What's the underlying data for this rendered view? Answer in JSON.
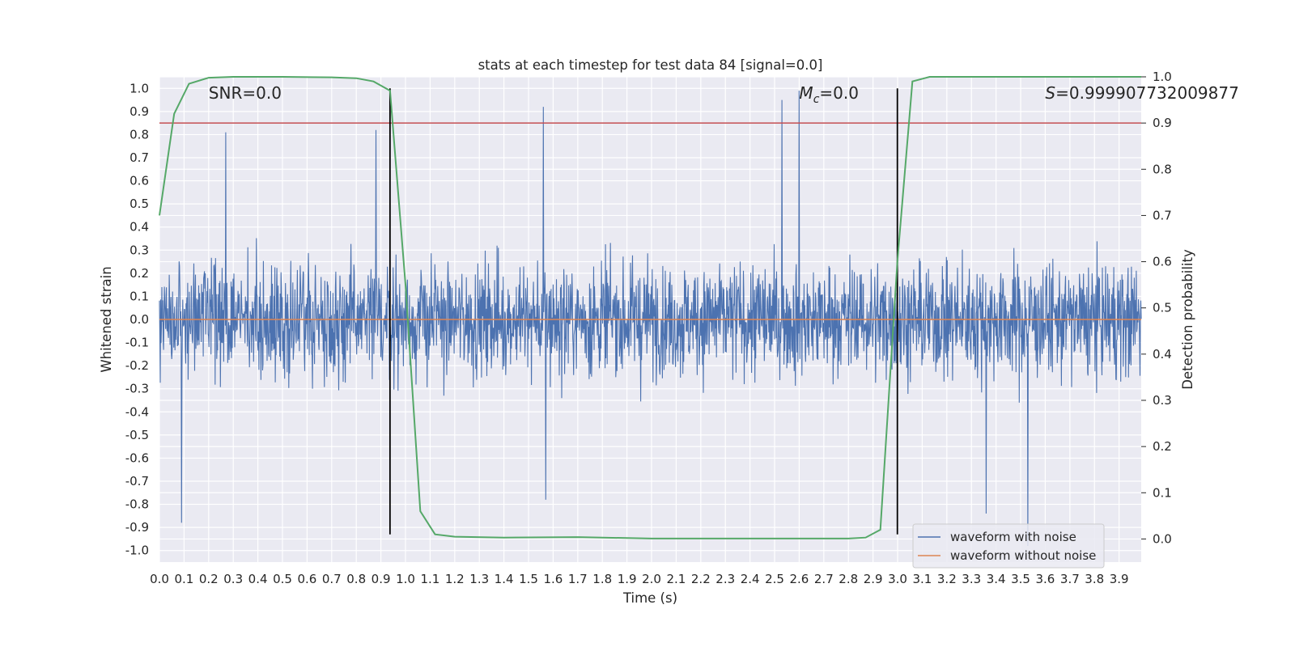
{
  "chart_data": {
    "type": "line",
    "title": "stats at each timestep for test data 84 [signal=0.0]",
    "xlabel": "Time (s)",
    "ylabel": "Whitened strain",
    "y2label": "Detection probability",
    "xlim": [
      0.0,
      3.99
    ],
    "ylim": [
      -1.05,
      1.05
    ],
    "y2lim": [
      -0.05,
      1.0
    ],
    "xticks": [
      "0.0",
      "0.1",
      "0.2",
      "0.3",
      "0.4",
      "0.5",
      "0.6",
      "0.7",
      "0.8",
      "0.9",
      "1.0",
      "1.1",
      "1.2",
      "1.3",
      "1.4",
      "1.5",
      "1.6",
      "1.7",
      "1.8",
      "1.9",
      "2.0",
      "2.1",
      "2.2",
      "2.3",
      "2.4",
      "2.5",
      "2.6",
      "2.7",
      "2.8",
      "2.9",
      "3.0",
      "3.1",
      "3.2",
      "3.3",
      "3.4",
      "3.5",
      "3.6",
      "3.7",
      "3.8",
      "3.9"
    ],
    "yticks": [
      "1.0",
      "0.9",
      "0.8",
      "0.7",
      "0.6",
      "0.5",
      "0.4",
      "0.3",
      "0.2",
      "0.1",
      "0.0",
      "-0.1",
      "-0.2",
      "-0.3",
      "-0.4",
      "-0.5",
      "-0.6",
      "-0.7",
      "-0.8",
      "-0.9",
      "-1.0"
    ],
    "y2ticks": [
      "1.0",
      "0.9",
      "0.8",
      "0.7",
      "0.6",
      "0.5",
      "0.4",
      "0.3",
      "0.2",
      "0.1",
      "0.0"
    ],
    "annotations": {
      "snr": "SNR=0.0",
      "mc_symbol": "M",
      "mc_sub": "c",
      "mc_value": "=0.0",
      "s_symbol": "S",
      "s_value": "=0.999907732009877"
    },
    "threshold": {
      "value": 0.9,
      "color": "#c44e52"
    },
    "vlines": [
      0.937,
      2.999
    ],
    "series": [
      {
        "name": "waveform with noise",
        "color": "#4c72b0",
        "description": "whitened noisy strain, amplitude mostly within +/-0.5 with peaks near +/-0.95",
        "peaks_high": [
          [
            0.27,
            0.81
          ],
          [
            0.88,
            0.82
          ],
          [
            1.56,
            0.92
          ],
          [
            2.6,
            0.99
          ],
          [
            2.53,
            0.95
          ]
        ],
        "peaks_low": [
          [
            0.09,
            -0.88
          ],
          [
            1.57,
            -0.78
          ],
          [
            3.53,
            -0.98
          ],
          [
            3.36,
            -0.84
          ]
        ]
      },
      {
        "name": "waveform without noise",
        "color": "#dd8452",
        "values_constant": 0.0
      },
      {
        "name": "detection probability",
        "color": "#55a868",
        "axis": "right",
        "x": [
          0.0,
          0.06,
          0.12,
          0.2,
          0.3,
          0.5,
          0.7,
          0.8,
          0.87,
          0.937,
          1.0,
          1.06,
          1.12,
          1.2,
          1.4,
          1.7,
          2.0,
          2.5,
          2.8,
          2.87,
          2.93,
          2.999,
          3.06,
          3.13,
          3.3,
          3.5,
          3.9,
          3.99
        ],
        "y": [
          0.7,
          0.92,
          0.985,
          0.998,
          1.0,
          1.0,
          0.999,
          0.997,
          0.99,
          0.97,
          0.55,
          0.06,
          0.01,
          0.005,
          0.003,
          0.004,
          0.001,
          0.001,
          0.001,
          0.003,
          0.02,
          0.6,
          0.99,
          1.0,
          1.0,
          1.0,
          1.0,
          1.0
        ]
      }
    ],
    "legend": {
      "placement": "bottom-right",
      "entries": [
        {
          "label": "waveform with noise",
          "color": "#4c72b0"
        },
        {
          "label": "waveform without noise",
          "color": "#dd8452"
        }
      ]
    },
    "style": {
      "plot_background": "#eaeaf2",
      "grid_color": "#ffffff",
      "vline_color": "#000000"
    }
  }
}
